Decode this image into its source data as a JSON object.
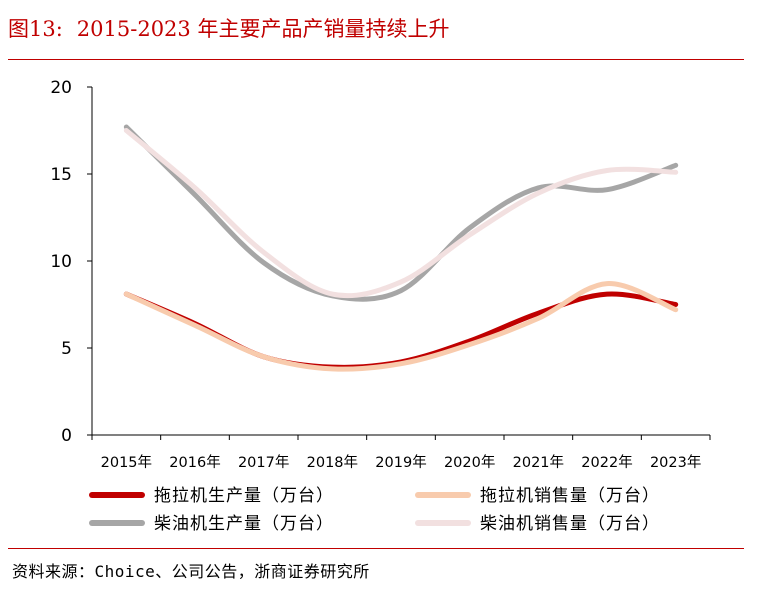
{
  "header": {
    "figure_label": "图13:",
    "title": "2015-2023 年主要产品产销量持续上升"
  },
  "source": "资料来源：Choice、公司公告，浙商证券研究所",
  "chart_data": {
    "type": "line",
    "title": "2015-2023 年主要产品产销量持续上升",
    "xlabel": "",
    "ylabel": "",
    "x": [
      "2015年",
      "2016年",
      "2017年",
      "2018年",
      "2019年",
      "2020年",
      "2021年",
      "2022年",
      "2023年"
    ],
    "ylim": [
      0,
      20
    ],
    "yticks": [
      "0",
      "5",
      "10",
      "15",
      "20"
    ],
    "grid": false,
    "legend_position": "bottom",
    "series": [
      {
        "name": "拖拉机生产量（万台）",
        "color": "#c00000",
        "values": [
          8.1,
          6.4,
          4.5,
          3.9,
          4.2,
          5.4,
          7.0,
          8.1,
          7.5
        ]
      },
      {
        "name": "拖拉机销售量（万台）",
        "color": "#f8cbad",
        "values": [
          8.1,
          6.3,
          4.5,
          3.8,
          4.1,
          5.2,
          6.7,
          8.7,
          7.2
        ]
      },
      {
        "name": "柴油机生产量（万台）",
        "color": "#a6a6a6",
        "values": [
          17.7,
          13.8,
          9.9,
          8.0,
          8.3,
          11.9,
          14.2,
          14.1,
          15.5
        ]
      },
      {
        "name": "柴油机销售量（万台）",
        "color": "#f2e0e0",
        "values": [
          17.5,
          14.2,
          10.5,
          8.1,
          8.8,
          11.5,
          13.9,
          15.2,
          15.1
        ]
      }
    ]
  }
}
